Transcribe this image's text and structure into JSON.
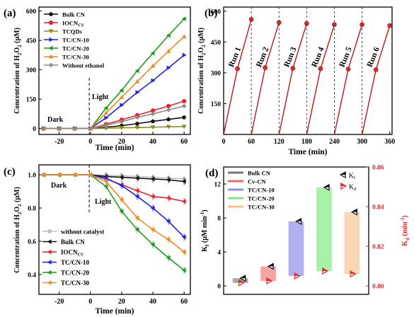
{
  "colors": {
    "black": "#111111",
    "red": "#e8242a",
    "olive": "#8c8c14",
    "green": "#1f9a1f",
    "blue": "#2323e6",
    "orange": "#f08a1c",
    "gray": "#8c8c8c",
    "lightgray": "#c2c2c2",
    "darkred": "#b81818"
  },
  "chart_data": [
    {
      "panel": "(a)",
      "type": "line",
      "xlabel": "Time (min)",
      "ylabel": "Concentration of H2O2 (μM)",
      "xlim": [
        -33,
        64
      ],
      "ylim": [
        -30,
        620
      ],
      "xticks": [
        -20,
        0,
        20,
        40,
        60
      ],
      "yticks": [
        0,
        150,
        300,
        450,
        600
      ],
      "annotations": [
        "Dark",
        "Light"
      ],
      "legend_position": "top-left",
      "x": [
        -30,
        -20,
        -10,
        0,
        10,
        20,
        30,
        40,
        50,
        60
      ],
      "series": [
        {
          "name": "Bulk CN",
          "color": "black",
          "marker": "pentagon",
          "values": [
            0,
            0,
            0,
            0,
            7,
            15,
            25,
            37,
            47,
            57
          ]
        },
        {
          "name": "IOCN",
          "name_sub": "CV",
          "color": "red",
          "marker": "circle",
          "values": [
            0,
            0,
            0,
            0,
            22,
            45,
            68,
            92,
            115,
            140
          ]
        },
        {
          "name": "TCQDs",
          "color": "olive",
          "marker": "triangle-down",
          "values": [
            0,
            0,
            0,
            0,
            2,
            4,
            5,
            7,
            9,
            10
          ]
        },
        {
          "name": "TC/CN-10",
          "color": "blue",
          "marker": "triangle-right",
          "values": [
            0,
            0,
            0,
            0,
            55,
            120,
            185,
            245,
            310,
            375
          ]
        },
        {
          "name": "TC/CN-20",
          "color": "green",
          "marker": "triangle-left",
          "values": [
            0,
            0,
            0,
            0,
            105,
            195,
            295,
            385,
            475,
            560
          ]
        },
        {
          "name": "TC/CN-30",
          "color": "orange",
          "marker": "triangle-up",
          "values": [
            0,
            0,
            0,
            0,
            80,
            160,
            240,
            320,
            395,
            470
          ]
        },
        {
          "name": "Without ethanol",
          "color": "gray",
          "marker": "diamond",
          "values": [
            0,
            0,
            0,
            0,
            17,
            35,
            57,
            75,
            95,
            115
          ]
        }
      ]
    },
    {
      "panel": "(b)",
      "type": "line",
      "xlabel": "Time (min)",
      "ylabel": "Concentration of H2O2 (μM)",
      "xlim": [
        0,
        365
      ],
      "ylim": [
        0,
        620
      ],
      "xticks": [
        0,
        60,
        120,
        180,
        240,
        300,
        360
      ],
      "yticks": [
        150,
        300,
        450,
        600
      ],
      "run_labels": [
        "Run 1",
        "Run 2",
        "Run 3",
        "Run 4",
        "Run 5",
        "Run 6"
      ],
      "run_starts": [
        0,
        60,
        120,
        180,
        240,
        300
      ],
      "point_offsets": [
        30,
        60
      ],
      "run_values": [
        [
          320,
          560
        ],
        [
          325,
          545
        ],
        [
          322,
          540
        ],
        [
          320,
          535
        ],
        [
          318,
          535
        ],
        [
          315,
          530
        ]
      ]
    },
    {
      "panel": "(c)",
      "type": "line",
      "xlabel": "Time (min)",
      "ylabel": "Concentration of H2O2 (μM)",
      "xlim": [
        -33,
        64
      ],
      "ylim": [
        0.28,
        1.06
      ],
      "xticks": [
        -20,
        0,
        20,
        40,
        60
      ],
      "yticks": [
        0.4,
        0.6,
        0.8,
        1.0
      ],
      "annotations": [
        "Dark",
        "Light"
      ],
      "legend_position": "bottom-left",
      "x": [
        -30,
        -20,
        -10,
        0,
        10,
        20,
        30,
        40,
        50,
        60
      ],
      "series": [
        {
          "name": "without catalyst",
          "color": "lightgray",
          "marker": "circle",
          "values": [
            1,
            1,
            1,
            1,
            0.998,
            0.995,
            0.99,
            0.985,
            0.98,
            0.975
          ]
        },
        {
          "name": "Bulk CN",
          "color": "black",
          "marker": "triangle-left",
          "values": [
            1,
            1,
            1,
            1,
            0.99,
            0.985,
            0.98,
            0.975,
            0.97,
            0.96
          ]
        },
        {
          "name": "IOCN",
          "name_sub": "CV",
          "color": "red",
          "marker": "triangle-left",
          "values": [
            1,
            1,
            1,
            1,
            0.975,
            0.94,
            0.905,
            0.87,
            0.86,
            0.84
          ]
        },
        {
          "name": "TC/CN-10",
          "color": "blue",
          "marker": "triangle-left",
          "values": [
            1,
            1,
            1,
            1,
            0.98,
            0.935,
            0.87,
            0.8,
            0.72,
            0.625
          ]
        },
        {
          "name": "TC/CN-20",
          "color": "green",
          "marker": "triangle-left",
          "values": [
            1,
            1,
            1,
            1,
            0.93,
            0.78,
            0.67,
            0.58,
            0.5,
            0.425
          ]
        },
        {
          "name": "TC/CN-30",
          "color": "orange",
          "marker": "triangle-left",
          "values": [
            1,
            1,
            1,
            1,
            0.96,
            0.85,
            0.74,
            0.67,
            0.61,
            0.535
          ]
        }
      ]
    },
    {
      "panel": "(d)",
      "type": "bar",
      "categories": [
        "Bulk CN",
        "Cv-CN",
        "TC/CN-10",
        "TC/CN-20",
        "TC/CN-30"
      ],
      "ylabel_left": "Kf (μM min-1)",
      "ylabel_right": "Kd (min-1)",
      "ylim_left": [
        -1,
        14
      ],
      "ylim_right": [
        -0.0043,
        0.06
      ],
      "yticks_left": [
        0,
        4,
        8,
        12
      ],
      "yticks_right": [
        0.0,
        0.02,
        0.04,
        0.06
      ],
      "legend_markers": [
        "Kf",
        "Kd"
      ],
      "kf": [
        0.9,
        2.3,
        7.6,
        11.6,
        8.7
      ],
      "kd": [
        0.0015,
        0.0025,
        0.005,
        0.0075,
        0.006
      ],
      "bar_colors": [
        "#9e9e9e",
        "#f59b9b",
        "#a9a9ee",
        "#9ff09f",
        "#fbd1ac"
      ],
      "legend_colors": [
        "#777777",
        "#f06a6a",
        "#8c8cec",
        "#7ee87e",
        "#f9c08a"
      ]
    }
  ]
}
